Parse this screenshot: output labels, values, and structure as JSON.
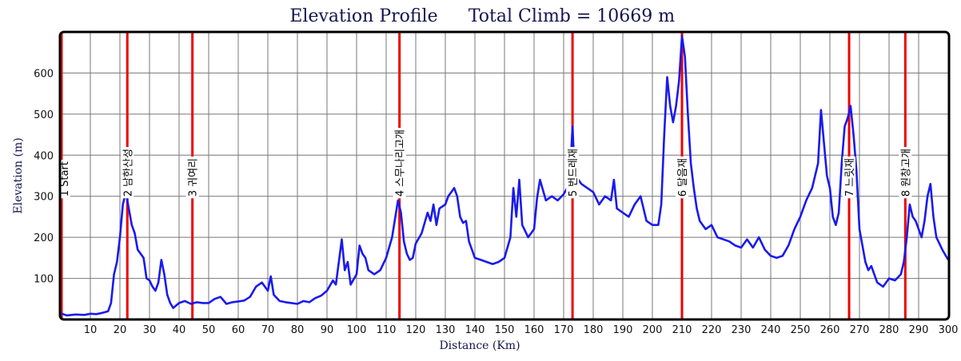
{
  "chart_data": {
    "type": "line",
    "title": "Elevation Profile",
    "subtitle": "Total Climb = 10669 m",
    "xlabel": "Distance (Km)",
    "ylabel": "Elevation (m)",
    "xlim": [
      0,
      300
    ],
    "ylim": [
      0,
      700
    ],
    "x_ticks": [
      10,
      20,
      30,
      40,
      50,
      60,
      70,
      80,
      90,
      100,
      110,
      120,
      130,
      140,
      150,
      160,
      170,
      180,
      190,
      200,
      210,
      220,
      230,
      240,
      250,
      260,
      270,
      280,
      290,
      300
    ],
    "y_ticks": [
      100,
      200,
      300,
      400,
      500,
      600
    ],
    "grid": true,
    "line_color": "#1a1aee",
    "waypoint_color": "#ee0000",
    "series": [
      {
        "points": [
          [
            0,
            15
          ],
          [
            2,
            10
          ],
          [
            5,
            12
          ],
          [
            8,
            11
          ],
          [
            10,
            14
          ],
          [
            12,
            13
          ],
          [
            14,
            16
          ],
          [
            16,
            20
          ],
          [
            17,
            40
          ],
          [
            18,
            110
          ],
          [
            19,
            140
          ],
          [
            20,
            200
          ],
          [
            21,
            280
          ],
          [
            22,
            310
          ],
          [
            23,
            270
          ],
          [
            24,
            230
          ],
          [
            25,
            210
          ],
          [
            26,
            170
          ],
          [
            27,
            160
          ],
          [
            28,
            150
          ],
          [
            29,
            100
          ],
          [
            30,
            95
          ],
          [
            31,
            80
          ],
          [
            32,
            70
          ],
          [
            33,
            90
          ],
          [
            34,
            145
          ],
          [
            35,
            110
          ],
          [
            36,
            60
          ],
          [
            37,
            40
          ],
          [
            38,
            28
          ],
          [
            40,
            40
          ],
          [
            42,
            45
          ],
          [
            44,
            38
          ],
          [
            46,
            42
          ],
          [
            48,
            40
          ],
          [
            50,
            40
          ],
          [
            52,
            50
          ],
          [
            54,
            55
          ],
          [
            56,
            38
          ],
          [
            58,
            42
          ],
          [
            60,
            44
          ],
          [
            62,
            46
          ],
          [
            64,
            55
          ],
          [
            66,
            80
          ],
          [
            68,
            90
          ],
          [
            70,
            70
          ],
          [
            71,
            105
          ],
          [
            72,
            60
          ],
          [
            74,
            45
          ],
          [
            76,
            42
          ],
          [
            78,
            40
          ],
          [
            80,
            38
          ],
          [
            82,
            45
          ],
          [
            84,
            42
          ],
          [
            86,
            52
          ],
          [
            88,
            58
          ],
          [
            90,
            70
          ],
          [
            92,
            95
          ],
          [
            93,
            85
          ],
          [
            94,
            140
          ],
          [
            95,
            195
          ],
          [
            96,
            120
          ],
          [
            97,
            140
          ],
          [
            98,
            85
          ],
          [
            100,
            110
          ],
          [
            101,
            180
          ],
          [
            102,
            160
          ],
          [
            103,
            150
          ],
          [
            104,
            120
          ],
          [
            106,
            110
          ],
          [
            108,
            120
          ],
          [
            110,
            150
          ],
          [
            112,
            200
          ],
          [
            114,
            290
          ],
          [
            115,
            260
          ],
          [
            116,
            190
          ],
          [
            117,
            160
          ],
          [
            118,
            145
          ],
          [
            119,
            150
          ],
          [
            120,
            185
          ],
          [
            122,
            210
          ],
          [
            124,
            260
          ],
          [
            125,
            240
          ],
          [
            126,
            280
          ],
          [
            127,
            230
          ],
          [
            128,
            270
          ],
          [
            130,
            280
          ],
          [
            131,
            300
          ],
          [
            132,
            310
          ],
          [
            133,
            320
          ],
          [
            134,
            300
          ],
          [
            135,
            250
          ],
          [
            136,
            235
          ],
          [
            137,
            240
          ],
          [
            138,
            190
          ],
          [
            140,
            150
          ],
          [
            142,
            145
          ],
          [
            144,
            140
          ],
          [
            146,
            135
          ],
          [
            148,
            140
          ],
          [
            150,
            150
          ],
          [
            152,
            200
          ],
          [
            153,
            320
          ],
          [
            154,
            250
          ],
          [
            155,
            340
          ],
          [
            156,
            230
          ],
          [
            158,
            200
          ],
          [
            160,
            220
          ],
          [
            161,
            295
          ],
          [
            162,
            340
          ],
          [
            164,
            290
          ],
          [
            166,
            300
          ],
          [
            168,
            290
          ],
          [
            170,
            305
          ],
          [
            172,
            330
          ],
          [
            173,
            470
          ],
          [
            174,
            310
          ],
          [
            175,
            340
          ],
          [
            176,
            330
          ],
          [
            178,
            320
          ],
          [
            180,
            310
          ],
          [
            182,
            280
          ],
          [
            184,
            300
          ],
          [
            186,
            290
          ],
          [
            187,
            340
          ],
          [
            188,
            270
          ],
          [
            190,
            260
          ],
          [
            192,
            250
          ],
          [
            194,
            280
          ],
          [
            196,
            300
          ],
          [
            198,
            240
          ],
          [
            200,
            230
          ],
          [
            202,
            230
          ],
          [
            203,
            280
          ],
          [
            204,
            450
          ],
          [
            205,
            590
          ],
          [
            206,
            520
          ],
          [
            207,
            480
          ],
          [
            208,
            520
          ],
          [
            209,
            580
          ],
          [
            210,
            690
          ],
          [
            211,
            640
          ],
          [
            212,
            500
          ],
          [
            213,
            380
          ],
          [
            214,
            320
          ],
          [
            215,
            270
          ],
          [
            216,
            240
          ],
          [
            218,
            220
          ],
          [
            220,
            230
          ],
          [
            222,
            200
          ],
          [
            224,
            195
          ],
          [
            226,
            190
          ],
          [
            228,
            180
          ],
          [
            230,
            175
          ],
          [
            232,
            195
          ],
          [
            234,
            175
          ],
          [
            236,
            200
          ],
          [
            238,
            170
          ],
          [
            240,
            155
          ],
          [
            242,
            150
          ],
          [
            244,
            155
          ],
          [
            246,
            180
          ],
          [
            248,
            220
          ],
          [
            250,
            250
          ],
          [
            252,
            290
          ],
          [
            254,
            320
          ],
          [
            256,
            380
          ],
          [
            257,
            510
          ],
          [
            258,
            430
          ],
          [
            259,
            350
          ],
          [
            260,
            320
          ],
          [
            261,
            250
          ],
          [
            262,
            230
          ],
          [
            263,
            260
          ],
          [
            264,
            380
          ],
          [
            265,
            470
          ],
          [
            266,
            490
          ],
          [
            267,
            520
          ],
          [
            268,
            450
          ],
          [
            269,
            360
          ],
          [
            270,
            220
          ],
          [
            271,
            180
          ],
          [
            272,
            140
          ],
          [
            273,
            120
          ],
          [
            274,
            130
          ],
          [
            275,
            110
          ],
          [
            276,
            90
          ],
          [
            278,
            80
          ],
          [
            280,
            100
          ],
          [
            282,
            95
          ],
          [
            284,
            110
          ],
          [
            285,
            140
          ],
          [
            286,
            200
          ],
          [
            287,
            280
          ],
          [
            288,
            250
          ],
          [
            289,
            240
          ],
          [
            290,
            220
          ],
          [
            291,
            200
          ],
          [
            292,
            240
          ],
          [
            293,
            300
          ],
          [
            294,
            330
          ],
          [
            295,
            250
          ],
          [
            296,
            200
          ],
          [
            298,
            170
          ],
          [
            300,
            145
          ]
        ]
      }
    ],
    "waypoints": [
      {
        "x": 0,
        "label": "1 Start"
      },
      {
        "x": 22.5,
        "label": "2 남한산성"
      },
      {
        "x": 44.5,
        "label": "3 귀여리"
      },
      {
        "x": 114.5,
        "label": "4 스무나리고개"
      },
      {
        "x": 173,
        "label": "5 번드레재"
      },
      {
        "x": 210,
        "label": "6 달음재"
      },
      {
        "x": 266.5,
        "label": "7 느릿재"
      },
      {
        "x": 285.5,
        "label": "8 원창고개"
      }
    ]
  }
}
